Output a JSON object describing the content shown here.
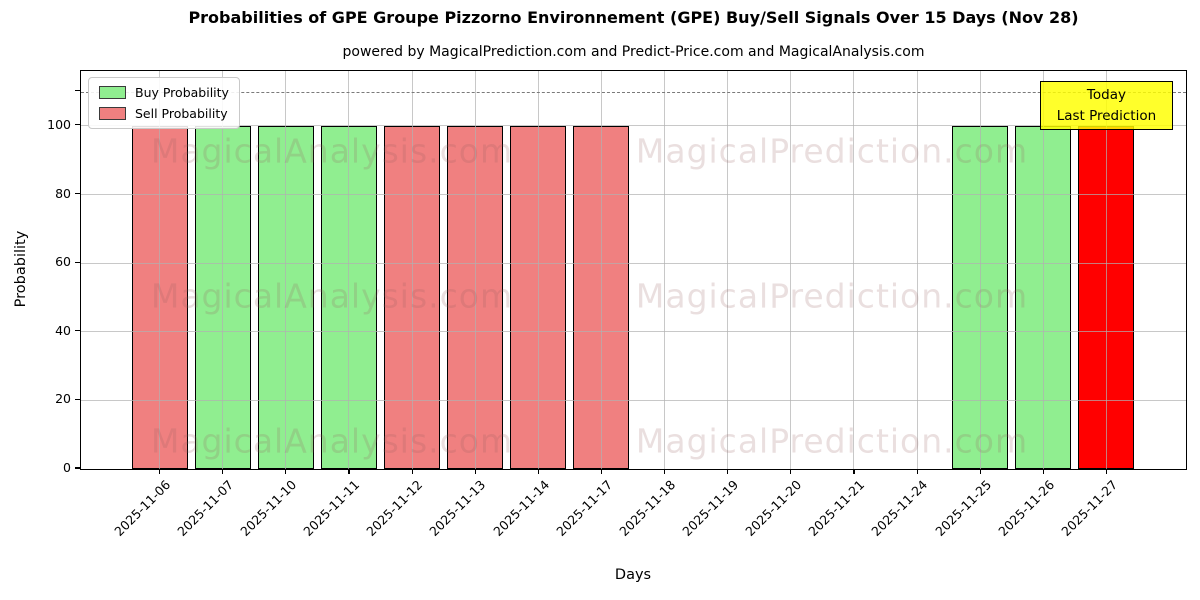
{
  "chart_data": {
    "type": "bar",
    "title": "Probabilities of GPE Groupe Pizzorno Environnement (GPE) Buy/Sell Signals Over 15 Days (Nov 28)",
    "subtitle": "powered by MagicalPrediction.com and Predict-Price.com and MagicalAnalysis.com",
    "xlabel": "Days",
    "ylabel": "Probability",
    "ylim": [
      0,
      116
    ],
    "yticks": [
      0,
      20,
      40,
      60,
      80,
      100
    ],
    "unlabeled_ytick": 110,
    "dashed_line_y": 110,
    "grid": true,
    "legend_position": "upper left",
    "categories": [
      "2025-11-06",
      "2025-11-07",
      "2025-11-10",
      "2025-11-11",
      "2025-11-12",
      "2025-11-13",
      "2025-11-14",
      "2025-11-17",
      "2025-11-18",
      "2025-11-19",
      "2025-11-20",
      "2025-11-21",
      "2025-11-24",
      "2025-11-25",
      "2025-11-26",
      "2025-11-27"
    ],
    "series": [
      {
        "name": "Buy Probability",
        "color": "#90ee90",
        "values": [
          0,
          100,
          100,
          100,
          0,
          0,
          0,
          0,
          0,
          0,
          0,
          0,
          0,
          100,
          100,
          0
        ]
      },
      {
        "name": "Sell Probability",
        "color": "#f08080",
        "values": [
          100,
          0,
          0,
          0,
          100,
          100,
          100,
          100,
          0,
          0,
          0,
          0,
          0,
          0,
          0,
          0
        ]
      },
      {
        "name": "Today Last Prediction",
        "color": "#ff0000",
        "values": [
          0,
          0,
          0,
          0,
          0,
          0,
          0,
          0,
          0,
          0,
          0,
          0,
          0,
          0,
          0,
          100
        ]
      }
    ]
  },
  "legend": {
    "items": [
      {
        "label": "Buy Probability",
        "color": "#90ee90"
      },
      {
        "label": "Sell Probability",
        "color": "#f08080"
      }
    ]
  },
  "annotation": {
    "line1": "Today",
    "line2": "Last Prediction",
    "bg": "#ffff00"
  },
  "watermarks": [
    "MagicalAnalysis.com",
    "MagicalPrediction.com"
  ]
}
